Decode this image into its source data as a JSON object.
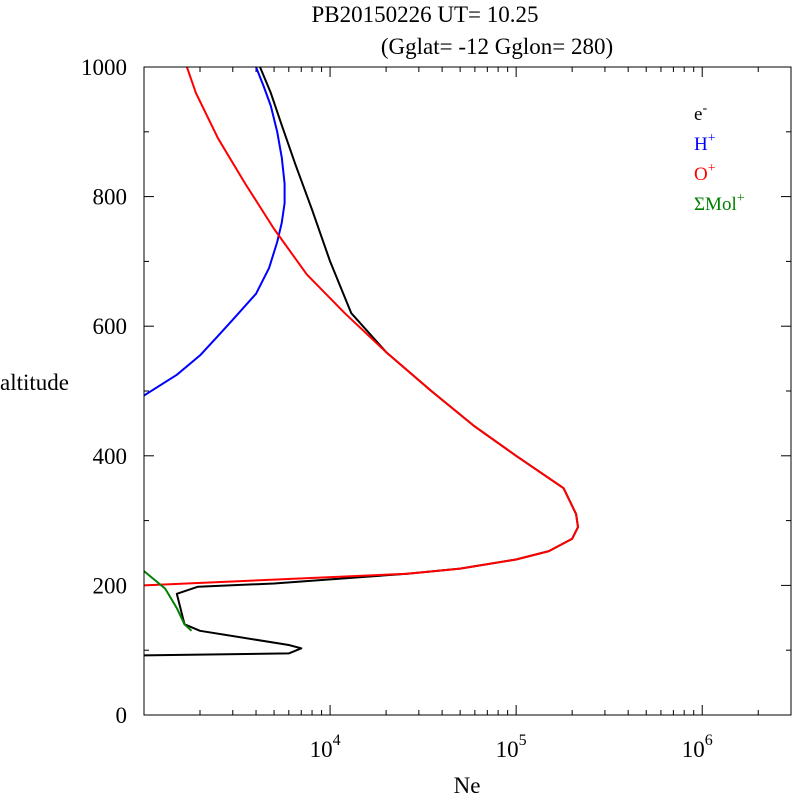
{
  "title": {
    "line1": "PB20150226   UT=  10.25",
    "line2": "(Gglat= -12   Gglon=  280)"
  },
  "legend": [
    {
      "base": "e",
      "sup": "-",
      "color": "#000000"
    },
    {
      "base": "H",
      "sup": "+",
      "color": "#0000ff"
    },
    {
      "base": "O",
      "sup": "+",
      "color": "#ff0000"
    },
    {
      "base": "ΣMol",
      "sup": "+",
      "color": "#008000"
    }
  ],
  "chart_data": {
    "type": "line",
    "xlabel": "Ne",
    "ylabel": "altitude",
    "x_scale": "log",
    "xlim": [
      1000,
      3000000
    ],
    "ylim": [
      0,
      1000
    ],
    "ytick_labels": [
      "0",
      "200",
      "400",
      "600",
      "800",
      "1000"
    ],
    "xtick_labels": [
      {
        "base": "10",
        "exp": "4"
      },
      {
        "base": "10",
        "exp": "5"
      },
      {
        "base": "10",
        "exp": "6"
      }
    ],
    "series": [
      {
        "name": "e-",
        "color": "#000000",
        "x": [
          1000,
          6000,
          7000,
          6000,
          2000,
          1650,
          1500,
          1950,
          5000,
          15000,
          26000,
          50000,
          100000,
          150000,
          200000,
          215000,
          210000,
          180000,
          100000,
          60000,
          35000,
          20000,
          13000,
          10000,
          8000,
          6500,
          5500,
          4800,
          4200
        ],
        "y": [
          92,
          95,
          103,
          108,
          130,
          140,
          187,
          198,
          203,
          213,
          218,
          226,
          240,
          253,
          272,
          290,
          310,
          350,
          400,
          445,
          500,
          560,
          620,
          700,
          780,
          850,
          910,
          960,
          1000
        ]
      },
      {
        "name": "H+",
        "color": "#0000ff",
        "x": [
          1000,
          1500,
          2000,
          2500,
          3000,
          4000,
          4700,
          5200,
          5500,
          5700,
          5700,
          5500,
          5200,
          4800,
          4400,
          4000
        ],
        "y": [
          493,
          525,
          555,
          585,
          610,
          650,
          690,
          730,
          760,
          790,
          820,
          860,
          900,
          940,
          970,
          1000
        ]
      },
      {
        "name": "O+",
        "color": "#ff0000",
        "x": [
          1000,
          26000,
          50000,
          100000,
          150000,
          200000,
          215000,
          210000,
          180000,
          100000,
          60000,
          35000,
          20000,
          12000,
          7500,
          5000,
          3500,
          2500,
          1900,
          1700
        ],
        "y": [
          200,
          218,
          226,
          240,
          253,
          272,
          290,
          310,
          350,
          400,
          445,
          500,
          560,
          620,
          680,
          750,
          820,
          890,
          960,
          1000
        ]
      },
      {
        "name": "ΣMol+",
        "color": "#008000",
        "x": [
          1000,
          1300,
          1500,
          1650,
          1800
        ],
        "y": [
          222,
          195,
          165,
          140,
          130
        ]
      }
    ]
  }
}
